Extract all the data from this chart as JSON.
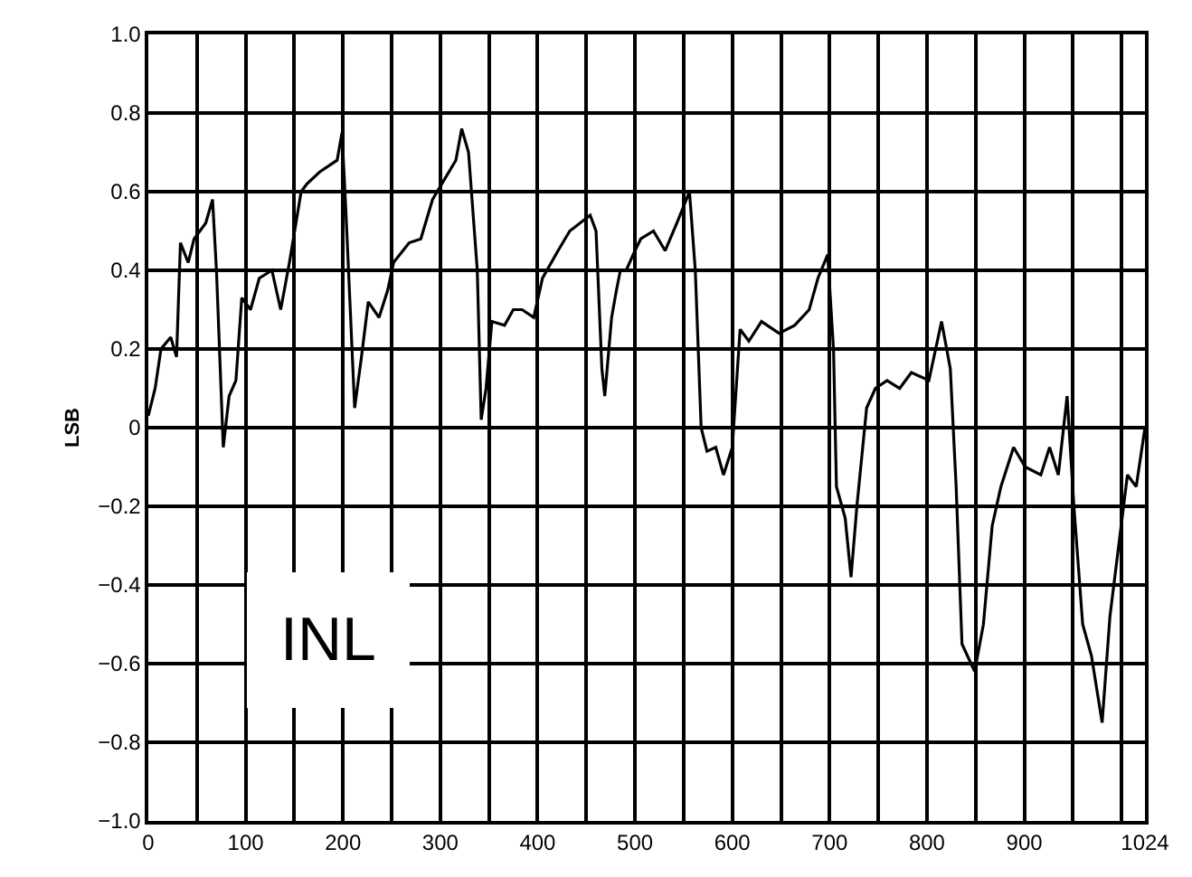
{
  "chart_data": {
    "type": "line",
    "ylabel": "LSB",
    "annotations": [
      "INL"
    ],
    "x": [
      0,
      7,
      13,
      23,
      29,
      33,
      41,
      47,
      59,
      66,
      70,
      77,
      83,
      90,
      96,
      105,
      114,
      127,
      136,
      145,
      157,
      163,
      176,
      194,
      199,
      203,
      212,
      219,
      226,
      237,
      246,
      252,
      268,
      280,
      292,
      304,
      316,
      322,
      329,
      338,
      342,
      347,
      353,
      366,
      375,
      384,
      396,
      405,
      421,
      433,
      454,
      457,
      460,
      466,
      469,
      476,
      481,
      485,
      491,
      500,
      506,
      519,
      531,
      543,
      556,
      562,
      568,
      574,
      583,
      591,
      600,
      608,
      617,
      630,
      648,
      664,
      679,
      688,
      698,
      704,
      707,
      716,
      722,
      728,
      738,
      747,
      759,
      772,
      784,
      802,
      815,
      824,
      830,
      836,
      849,
      858,
      867,
      876,
      889,
      901,
      917,
      926,
      935,
      944,
      951,
      960,
      969,
      980,
      988,
      997,
      1006,
      1015,
      1024
    ],
    "series": [
      {
        "color": "#000000",
        "values": [
          0.03,
          0.1,
          0.2,
          0.23,
          0.18,
          0.47,
          0.42,
          0.48,
          0.52,
          0.58,
          0.4,
          -0.05,
          0.08,
          0.12,
          0.33,
          0.3,
          0.38,
          0.4,
          0.3,
          0.42,
          0.6,
          0.62,
          0.65,
          0.68,
          0.75,
          0.55,
          0.05,
          0.18,
          0.32,
          0.28,
          0.35,
          0.42,
          0.47,
          0.48,
          0.58,
          0.63,
          0.68,
          0.76,
          0.7,
          0.4,
          0.02,
          0.1,
          0.27,
          0.26,
          0.3,
          0.3,
          0.28,
          0.38,
          0.45,
          0.5,
          0.54,
          0.52,
          0.5,
          0.15,
          0.08,
          0.28,
          0.35,
          0.4,
          0.4,
          0.45,
          0.48,
          0.5,
          0.45,
          0.52,
          0.6,
          0.4,
          0.0,
          -0.06,
          -0.05,
          -0.12,
          -0.05,
          0.25,
          0.22,
          0.27,
          0.24,
          0.26,
          0.3,
          0.38,
          0.44,
          0.2,
          -0.15,
          -0.23,
          -0.38,
          -0.2,
          0.05,
          0.1,
          0.12,
          0.1,
          0.14,
          0.12,
          0.27,
          0.15,
          -0.15,
          -0.55,
          -0.62,
          -0.5,
          -0.25,
          -0.15,
          -0.05,
          -0.1,
          -0.12,
          -0.05,
          -0.12,
          0.08,
          -0.2,
          -0.5,
          -0.58,
          -0.75,
          -0.48,
          -0.3,
          -0.12,
          -0.15,
          0.0
        ]
      }
    ],
    "xlim": [
      0,
      1024
    ],
    "xticks": [
      0,
      {
        "value": 50,
        "label": null
      },
      100,
      {
        "value": 150,
        "label": null
      },
      200,
      {
        "value": 250,
        "label": null
      },
      300,
      {
        "value": 350,
        "label": null
      },
      400,
      {
        "value": 450,
        "label": null
      },
      500,
      {
        "value": 550,
        "label": null
      },
      600,
      {
        "value": 650,
        "label": null
      },
      700,
      {
        "value": 750,
        "label": null
      },
      800,
      {
        "value": 850,
        "label": null
      },
      900,
      {
        "value": 950,
        "label": null
      },
      {
        "value": 1000,
        "label": null
      },
      1024
    ],
    "ylim": [
      -1.0,
      1.0
    ],
    "yticks": [
      {
        "value": -1.0,
        "label": "−1.0"
      },
      {
        "value": -0.8,
        "label": "−0.8"
      },
      {
        "value": -0.6,
        "label": "−0.6"
      },
      {
        "value": -0.4,
        "label": "−0.4"
      },
      {
        "value": -0.2,
        "label": "−0.2"
      },
      0,
      {
        "value": 0.2,
        "label": "0.2"
      },
      {
        "value": 0.4,
        "label": "0.4"
      },
      {
        "value": 0.6,
        "label": "0.6"
      },
      {
        "value": 0.8,
        "label": "0.8"
      },
      {
        "value": 1.0,
        "label": "1.0"
      }
    ],
    "grid": true,
    "marker": "none",
    "line_style": "solid"
  }
}
